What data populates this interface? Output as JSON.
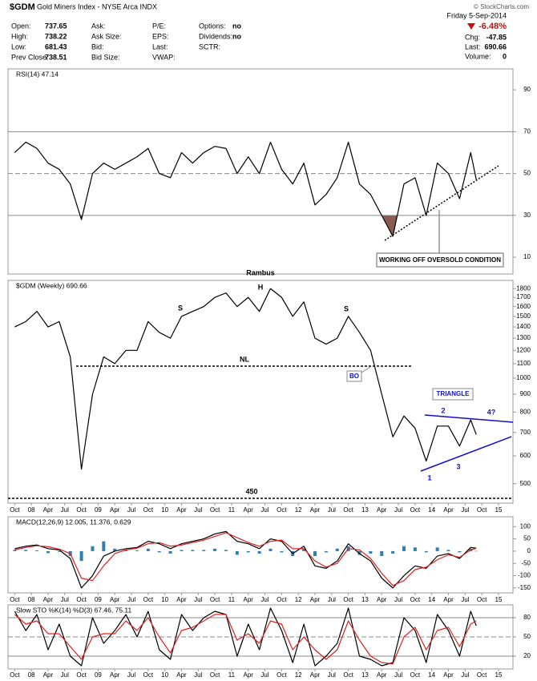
{
  "header": {
    "symbol": "$GDM",
    "name": "Gold Miners Index - NYSE Arca INDX",
    "fields": [
      {
        "label": "Open:",
        "value": 737.65
      },
      {
        "label": "High:",
        "value": 738.22
      },
      {
        "label": "Low:",
        "value": 681.43
      },
      {
        "label": "Prev Close:",
        "value": 738.51
      },
      {
        "label": "Ask:"
      },
      {
        "label": "Ask Size:"
      },
      {
        "label": "Bid:"
      },
      {
        "label": "Bid Size:"
      },
      {
        "label": "P/E:"
      },
      {
        "label": "EPS:"
      },
      {
        "label": "Last:"
      },
      {
        "label": "VWAP:"
      },
      {
        "label": "Options:",
        "value": "no"
      },
      {
        "label": "Dividends:",
        "value": "no"
      },
      {
        "label": "SCTR:"
      }
    ],
    "date": "Friday  5-Sep-2014",
    "change_pct": "-6.48%",
    "right_fields": [
      {
        "label": "Chg:",
        "value": -47.85
      },
      {
        "label": "Last:",
        "value": 690.66
      },
      {
        "label": "Volume:",
        "value": 0
      }
    ],
    "credit": "© StockCharts.com"
  },
  "annotations": [
    "Rambus",
    "S",
    "H",
    "S",
    "NL",
    "BO",
    "TRIANGLE",
    "1",
    "2",
    "3",
    "4?",
    "450",
    "WORKING OFF OVERSOLD CONDITION"
  ],
  "x_axis": {
    "x": [
      0,
      2,
      4,
      6,
      8,
      10,
      12,
      14,
      16,
      18,
      20,
      22,
      24,
      26,
      28,
      30,
      32,
      34,
      36,
      38,
      40,
      42,
      44,
      46,
      48,
      50,
      52,
      54,
      56,
      58,
      60,
      62,
      64,
      66,
      68,
      70,
      72,
      74,
      76,
      78,
      80,
      82,
      83
    ],
    "xlim": [
      -1.2,
      89.6
    ],
    "xticks": [
      {
        "value": 0,
        "label": "Oct"
      },
      {
        "value": 3,
        "label": "08"
      },
      {
        "value": 6,
        "label": "Apr"
      },
      {
        "value": 9,
        "label": "Jul"
      },
      {
        "value": 12,
        "label": "Oct"
      },
      {
        "value": 15,
        "label": "09"
      },
      {
        "value": 18,
        "label": "Apr"
      },
      {
        "value": 21,
        "label": "Jul"
      },
      {
        "value": 24,
        "label": "Oct"
      },
      {
        "value": 27,
        "label": "10"
      },
      {
        "value": 30,
        "label": "Apr"
      },
      {
        "value": 33,
        "label": "Jul"
      },
      {
        "value": 36,
        "label": "Oct"
      },
      {
        "value": 39,
        "label": "11"
      },
      {
        "value": 42,
        "label": "Apr"
      },
      {
        "value": 45,
        "label": "Jul"
      },
      {
        "value": 48,
        "label": "Oct"
      },
      {
        "value": 51,
        "label": "12"
      },
      {
        "value": 54,
        "label": "Apr"
      },
      {
        "value": 57,
        "label": "Jul"
      },
      {
        "value": 60,
        "label": "Oct"
      },
      {
        "value": 63,
        "label": "13"
      },
      {
        "value": 66,
        "label": "Apr"
      },
      {
        "value": 69,
        "label": "Jul"
      },
      {
        "value": 72,
        "label": "Oct"
      },
      {
        "value": 75,
        "label": "14"
      },
      {
        "value": 78,
        "label": "Apr"
      },
      {
        "value": 81,
        "label": "Jul"
      },
      {
        "value": 84,
        "label": "Oct"
      },
      {
        "value": 87,
        "label": "15"
      }
    ]
  },
  "chart_data": [
    {
      "type": "line",
      "legend": "RSI(14) 47.14",
      "ylim": [
        2,
        100
      ],
      "yticks": [
        10,
        30,
        50,
        70,
        90
      ],
      "hlines": [
        {
          "value": 30,
          "fill": "#8b5a50"
        },
        {
          "value": 70
        },
        {
          "value": 50,
          "dash": true
        }
      ],
      "series": [
        {
          "color": "#000000",
          "style": "line",
          "values": [
            60,
            65,
            62,
            55,
            52,
            45,
            28,
            50,
            55,
            52,
            55,
            58,
            62,
            50,
            48,
            60,
            55,
            60,
            63,
            62,
            50,
            58,
            50,
            65,
            52,
            45,
            55,
            35,
            40,
            48,
            65,
            45,
            40,
            30,
            20,
            45,
            48,
            30,
            55,
            50,
            38,
            60,
            47.14
          ]
        }
      ]
    },
    {
      "type": "line",
      "legend": "$GDM (Weekly) 690.66",
      "log": true,
      "ylim": [
        440,
        1900
      ],
      "yticks": [
        500,
        600,
        700,
        800,
        900,
        1000,
        1100,
        1200,
        1300,
        1400,
        1500,
        1600,
        1700,
        1800
      ],
      "series": [
        {
          "color": "#000000",
          "style": "line",
          "values": [
            1400,
            1450,
            1550,
            1400,
            1450,
            1150,
            550,
            900,
            1150,
            1100,
            1200,
            1200,
            1450,
            1350,
            1300,
            1500,
            1550,
            1600,
            1700,
            1750,
            1600,
            1700,
            1550,
            1800,
            1700,
            1500,
            1650,
            1300,
            1250,
            1300,
            1500,
            1350,
            1200,
            900,
            680,
            780,
            720,
            580,
            730,
            730,
            640,
            760,
            690.66
          ]
        }
      ]
    },
    {
      "type": "line",
      "legend": "MACD(12,26,9) 12.005, 11.376, 0.629",
      "ylim": [
        -170,
        140
      ],
      "yticks": [
        100,
        50,
        0,
        -50,
        -100,
        -150
      ],
      "series": [
        {
          "color": "#2f7fb0",
          "style": "bar",
          "values": [
            5,
            5,
            3,
            -8,
            -3,
            -20,
            -40,
            20,
            40,
            10,
            5,
            3,
            10,
            -5,
            -10,
            5,
            5,
            5,
            10,
            5,
            -15,
            -5,
            -10,
            10,
            -5,
            -20,
            10,
            -20,
            -5,
            10,
            20,
            -15,
            -10,
            -20,
            -10,
            20,
            15,
            -5,
            15,
            5,
            -5,
            10,
            0.629
          ]
        },
        {
          "color": "#000000",
          "style": "line",
          "values": [
            10,
            20,
            25,
            10,
            5,
            -30,
            -150,
            -100,
            -20,
            0,
            10,
            15,
            40,
            30,
            10,
            30,
            40,
            50,
            70,
            80,
            40,
            30,
            10,
            50,
            40,
            -10,
            20,
            -60,
            -70,
            -40,
            30,
            -10,
            -40,
            -110,
            -150,
            -100,
            -60,
            -70,
            -20,
            -10,
            -30,
            15,
            12.005
          ]
        },
        {
          "color": "#e02020",
          "style": "line",
          "values": [
            5,
            15,
            22,
            18,
            8,
            -10,
            -110,
            -120,
            -60,
            -10,
            5,
            12,
            30,
            35,
            20,
            25,
            35,
            45,
            60,
            75,
            55,
            35,
            20,
            40,
            45,
            10,
            10,
            -40,
            -65,
            -50,
            10,
            5,
            -30,
            -90,
            -140,
            -120,
            -75,
            -65,
            -35,
            -15,
            -25,
            5,
            11.376
          ]
        }
      ]
    },
    {
      "type": "line",
      "legend": "Slow STO %K(14) %D(3) 67.46, 75.11",
      "ylim": [
        0,
        100
      ],
      "yticks": [
        80,
        50,
        20
      ],
      "hlines": [
        {
          "value": 80
        },
        {
          "value": 20
        },
        {
          "value": 50,
          "dash": true
        }
      ],
      "series": [
        {
          "color": "#000000",
          "style": "line",
          "values": [
            90,
            60,
            85,
            30,
            70,
            20,
            5,
            80,
            40,
            60,
            85,
            50,
            90,
            30,
            15,
            85,
            60,
            80,
            90,
            85,
            20,
            70,
            30,
            95,
            60,
            10,
            70,
            5,
            20,
            40,
            95,
            20,
            15,
            5,
            10,
            80,
            60,
            10,
            85,
            60,
            20,
            90,
            67.46
          ]
        },
        {
          "color": "#e02020",
          "style": "line",
          "values": [
            85,
            70,
            75,
            55,
            55,
            35,
            15,
            50,
            55,
            55,
            75,
            60,
            80,
            50,
            25,
            60,
            65,
            75,
            85,
            85,
            45,
            55,
            40,
            75,
            70,
            30,
            50,
            30,
            15,
            30,
            75,
            45,
            20,
            10,
            8,
            50,
            65,
            30,
            60,
            65,
            35,
            70,
            75.11
          ]
        }
      ]
    }
  ]
}
